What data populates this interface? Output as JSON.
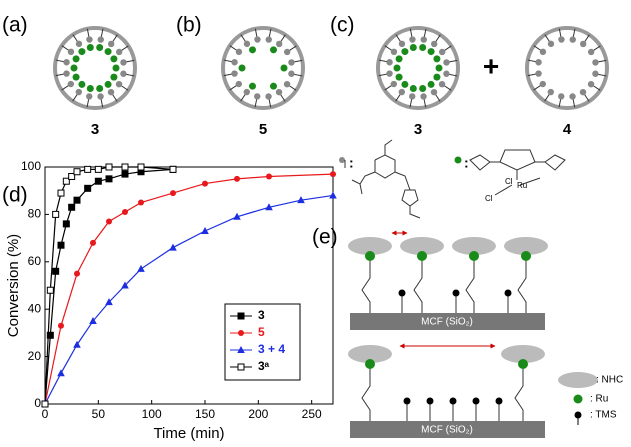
{
  "panels": [
    {
      "label": "(a)",
      "compound": "3"
    },
    {
      "label": "(b)",
      "compound": "5"
    },
    {
      "label": "(c)",
      "compound": "3",
      "operator": "+",
      "compound2": "4"
    }
  ],
  "structure": {
    "legend_sep": ":",
    "ru_labels": [
      "Cl",
      "Ru",
      "Cl"
    ]
  },
  "panel_d": {
    "label": "(d)"
  },
  "panel_e": {
    "label": "(e)",
    "support": "MCF (SiO₂)",
    "legend": [
      ": NHC",
      ": Ru",
      ": TMS"
    ]
  },
  "chart_data": {
    "type": "line",
    "x_label": "Time (min)",
    "y_label": "Conversion (%)",
    "xlim": [
      0,
      270
    ],
    "xticks": [
      0,
      50,
      100,
      150,
      200,
      250
    ],
    "ylim": [
      0,
      100
    ],
    "yticks": [
      0,
      20,
      40,
      60,
      80,
      100
    ],
    "grid": false,
    "legend": "lower right",
    "series": [
      {
        "name": "3",
        "color": "#000000",
        "marker": "square-filled",
        "x": [
          0,
          5,
          10,
          15,
          20,
          25,
          30,
          40,
          50,
          60,
          75,
          90,
          120
        ],
        "values": [
          0,
          29,
          56,
          67,
          76,
          83,
          86,
          91,
          94,
          95,
          97,
          98,
          99
        ]
      },
      {
        "name": "5",
        "color": "#e8191c",
        "marker": "circle",
        "x": [
          0,
          15,
          30,
          45,
          60,
          75,
          90,
          120,
          150,
          180,
          210,
          270
        ],
        "values": [
          0,
          33,
          55,
          68,
          77,
          81,
          85,
          89,
          93,
          95,
          96,
          97
        ]
      },
      {
        "name": "3 + 4",
        "color": "#1c2fe0",
        "marker": "triangle",
        "x": [
          0,
          15,
          30,
          45,
          60,
          75,
          90,
          120,
          150,
          180,
          210,
          240,
          270
        ],
        "values": [
          0,
          13,
          25,
          35,
          43,
          50,
          57,
          66,
          73,
          79,
          83,
          86,
          88
        ]
      },
      {
        "name": "3ᵃ",
        "color": "#000000",
        "marker": "square-open",
        "x": [
          0,
          5,
          10,
          15,
          20,
          25,
          30,
          40,
          50,
          60,
          75,
          90,
          120
        ],
        "values": [
          0,
          48,
          80,
          89,
          94,
          96,
          98,
          99,
          99,
          100,
          100,
          100,
          99
        ]
      }
    ]
  }
}
